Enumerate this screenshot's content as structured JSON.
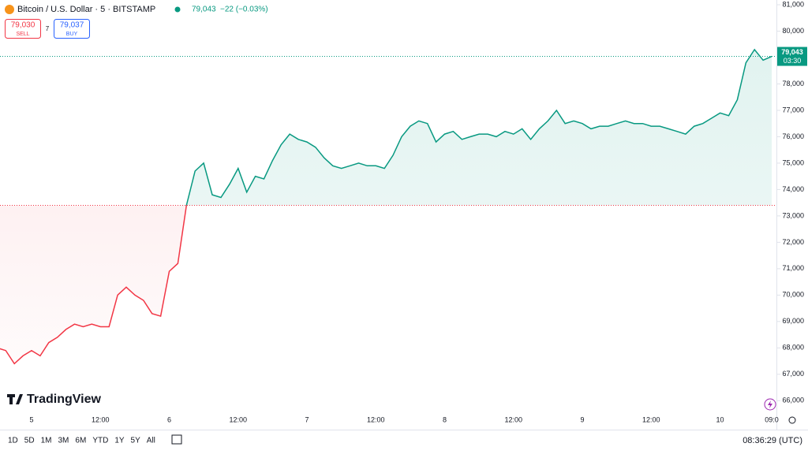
{
  "header": {
    "symbol": "Bitcoin / U.S. Dollar · 5 · BITSTAMP",
    "last": "79,043",
    "change": "−22 (−0.03%)"
  },
  "trade": {
    "sell_price": "79,030",
    "sell": "SELL",
    "spread": "7",
    "buy_price": "79,037",
    "buy": "BUY"
  },
  "logo": "TradingView",
  "chart_data": {
    "type": "line",
    "categories": [
      null,
      null,
      null,
      null,
      "5",
      null,
      null,
      null,
      null,
      null,
      null,
      null,
      "12:00",
      null,
      null,
      null,
      null,
      null,
      null,
      null,
      "6",
      null,
      null,
      null,
      null,
      null,
      null,
      null,
      "12:00",
      null,
      null,
      null,
      null,
      null,
      null,
      null,
      "7",
      null,
      null,
      null,
      null,
      null,
      null,
      null,
      "12:00",
      null,
      null,
      null,
      null,
      null,
      null,
      null,
      "8",
      null,
      null,
      null,
      null,
      null,
      null,
      null,
      "12:00",
      null,
      null,
      null,
      null,
      null,
      null,
      null,
      "9",
      null,
      null,
      null,
      null,
      null,
      null,
      null,
      "12:00",
      null,
      null,
      null,
      null,
      null,
      null,
      null,
      "10",
      null,
      null,
      null,
      null,
      null,
      "09:0"
    ],
    "values": [
      68000,
      67900,
      67400,
      67700,
      67900,
      67700,
      68200,
      68400,
      68700,
      68900,
      68800,
      68900,
      68800,
      68800,
      70000,
      70300,
      70000,
      69800,
      69300,
      69200,
      70900,
      71200,
      73400,
      74700,
      75000,
      73800,
      73700,
      74200,
      74800,
      73900,
      74500,
      74400,
      75100,
      75700,
      76100,
      75900,
      75800,
      75600,
      75200,
      74900,
      74800,
      74900,
      75000,
      74900,
      74900,
      74800,
      75300,
      76000,
      76400,
      76600,
      76500,
      75800,
      76100,
      76200,
      75900,
      76000,
      76100,
      76100,
      76000,
      76200,
      76100,
      76300,
      75900,
      76300,
      76600,
      77000,
      76500,
      76600,
      76500,
      76300,
      76400,
      76400,
      76500,
      76600,
      76500,
      76500,
      76400,
      76400,
      76300,
      76200,
      76100,
      76400,
      76500,
      76700,
      76900,
      76800,
      77400,
      78800,
      79300,
      78900,
      79043
    ],
    "ylim": [
      65650,
      81180
    ],
    "yticks": [
      {
        "value": 66000,
        "label": "66,000"
      },
      {
        "value": 67000,
        "label": "67,000"
      },
      {
        "value": 68000,
        "label": "68,000"
      },
      {
        "value": 69000,
        "label": "69,000"
      },
      {
        "value": 70000,
        "label": "70,000"
      },
      {
        "value": 71000,
        "label": "71,000"
      },
      {
        "value": 72000,
        "label": "72,000"
      },
      {
        "value": 73000,
        "label": "73,000"
      },
      {
        "value": 74000,
        "label": "74,000"
      },
      {
        "value": 75000,
        "label": "75,000"
      },
      {
        "value": 76000,
        "label": "76,000"
      },
      {
        "value": 77000,
        "label": "77,000"
      },
      {
        "value": 78000,
        "label": "78,000"
      },
      {
        "value": 79000,
        "label": "79,000"
      },
      {
        "value": 80000,
        "label": "80,000"
      },
      {
        "value": 81000,
        "label": "81,000"
      }
    ],
    "baseline": 73400,
    "up_color": "#089981",
    "down_color": "#f23645",
    "last_price_label": "79,043",
    "countdown": "03:30"
  },
  "toolbar": {
    "ranges": [
      "1D",
      "5D",
      "1M",
      "3M",
      "6M",
      "YTD",
      "1Y",
      "5Y",
      "All"
    ],
    "clock": "08:36:29 (UTC)"
  }
}
